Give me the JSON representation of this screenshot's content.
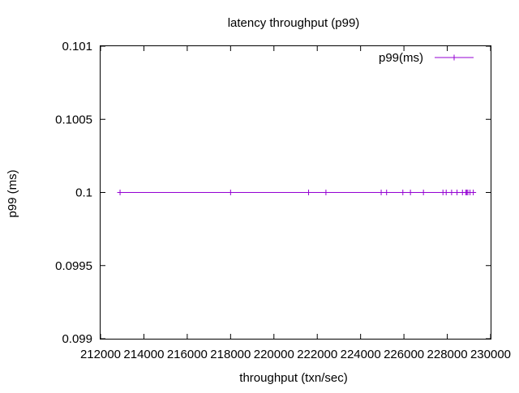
{
  "chart_data": {
    "type": "line",
    "title": "latency throughput (p99)",
    "xlabel": "throughput (txn/sec)",
    "ylabel": "p99 (ms)",
    "xlim": [
      212000,
      230000
    ],
    "ylim": [
      0.099,
      0.101
    ],
    "xticks": [
      212000,
      214000,
      216000,
      218000,
      220000,
      222000,
      224000,
      226000,
      228000,
      230000
    ],
    "xtick_labels": [
      "212000",
      "214000",
      "216000",
      "218000",
      "220000",
      "222000",
      "224000",
      "226000",
      "228000",
      "230000"
    ],
    "yticks": [
      0.099,
      0.0995,
      0.1,
      0.1005,
      0.101
    ],
    "ytick_labels": [
      "0.099",
      "0.0995",
      "0.1",
      "0.1005",
      "0.101"
    ],
    "grid": false,
    "legend_position": "top-right",
    "series": [
      {
        "name": "p99(ms)",
        "color": "#9400d3",
        "marker": "plus",
        "x": [
          212900,
          218000,
          221600,
          222400,
          224950,
          225200,
          225950,
          226300,
          226900,
          227800,
          227950,
          228200,
          228450,
          228700,
          228850,
          228900,
          228950,
          229050,
          229200
        ],
        "y": [
          0.1,
          0.1,
          0.1,
          0.1,
          0.1,
          0.1,
          0.1,
          0.1,
          0.1,
          0.1,
          0.1,
          0.1,
          0.1,
          0.1,
          0.1,
          0.1,
          0.1,
          0.1,
          0.1
        ]
      }
    ]
  }
}
